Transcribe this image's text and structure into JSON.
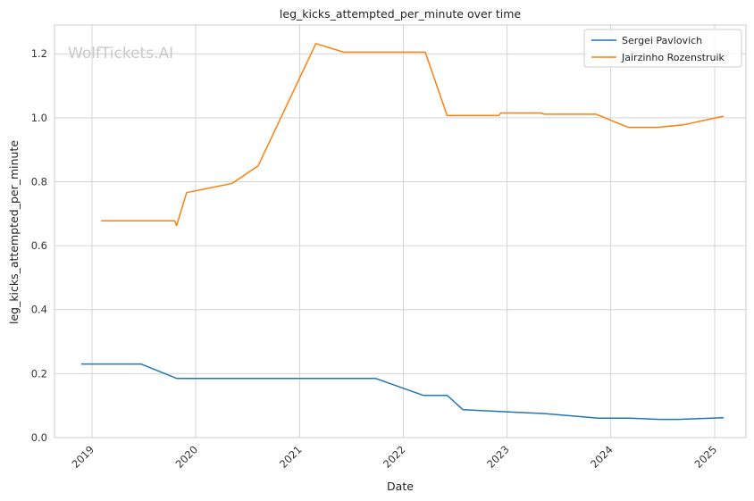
{
  "watermark": "WolfTickets.AI",
  "chart_data": {
    "type": "line",
    "title": "leg_kicks_attempted_per_minute over time",
    "xlabel": "Date",
    "ylabel": "leg_kicks_attempted_per_minute",
    "xlim": [
      "2018-08-22",
      "2025-04-21"
    ],
    "ylim": [
      0,
      1.29
    ],
    "x_ticks": [
      "2019",
      "2020",
      "2021",
      "2022",
      "2023",
      "2024",
      "2025"
    ],
    "y_ticks": [
      "0.0",
      "0.2",
      "0.4",
      "0.6",
      "0.8",
      "1.0",
      "1.2"
    ],
    "grid": true,
    "legend_position": "top-right",
    "series": [
      {
        "name": "Sergei Pavlovich",
        "color": "#1f77b4",
        "points": [
          [
            "2018-11-24",
            0.23
          ],
          [
            "2019-06-22",
            0.23
          ],
          [
            "2019-10-26",
            0.185
          ],
          [
            "2021-09-25",
            0.185
          ],
          [
            "2022-03-12",
            0.132
          ],
          [
            "2022-06-04",
            0.132
          ],
          [
            "2022-07-30",
            0.087
          ],
          [
            "2023-01-07",
            0.08
          ],
          [
            "2023-05-13",
            0.075
          ],
          [
            "2023-11-18",
            0.061
          ],
          [
            "2024-03-09",
            0.061
          ],
          [
            "2024-06-22",
            0.057
          ],
          [
            "2024-08-24",
            0.057
          ],
          [
            "2025-02-01",
            0.062
          ]
        ]
      },
      {
        "name": "Jairzinho Rozenstruik",
        "color": "#ff7f0e",
        "points": [
          [
            "2019-02-02",
            0.678
          ],
          [
            "2019-10-19",
            0.678
          ],
          [
            "2019-10-26",
            0.663
          ],
          [
            "2019-11-30",
            0.766
          ],
          [
            "2020-05-09",
            0.795
          ],
          [
            "2020-08-08",
            0.85
          ],
          [
            "2021-02-27",
            1.232
          ],
          [
            "2021-06-05",
            1.205
          ],
          [
            "2022-03-19",
            1.205
          ],
          [
            "2022-06-04",
            1.007
          ],
          [
            "2022-12-03",
            1.007
          ],
          [
            "2022-12-10",
            1.015
          ],
          [
            "2023-04-29",
            1.015
          ],
          [
            "2023-05-13",
            1.011
          ],
          [
            "2023-11-11",
            1.011
          ],
          [
            "2024-03-02",
            0.97
          ],
          [
            "2024-06-15",
            0.97
          ],
          [
            "2024-09-14",
            0.978
          ],
          [
            "2025-02-01",
            1.005
          ]
        ]
      }
    ]
  }
}
